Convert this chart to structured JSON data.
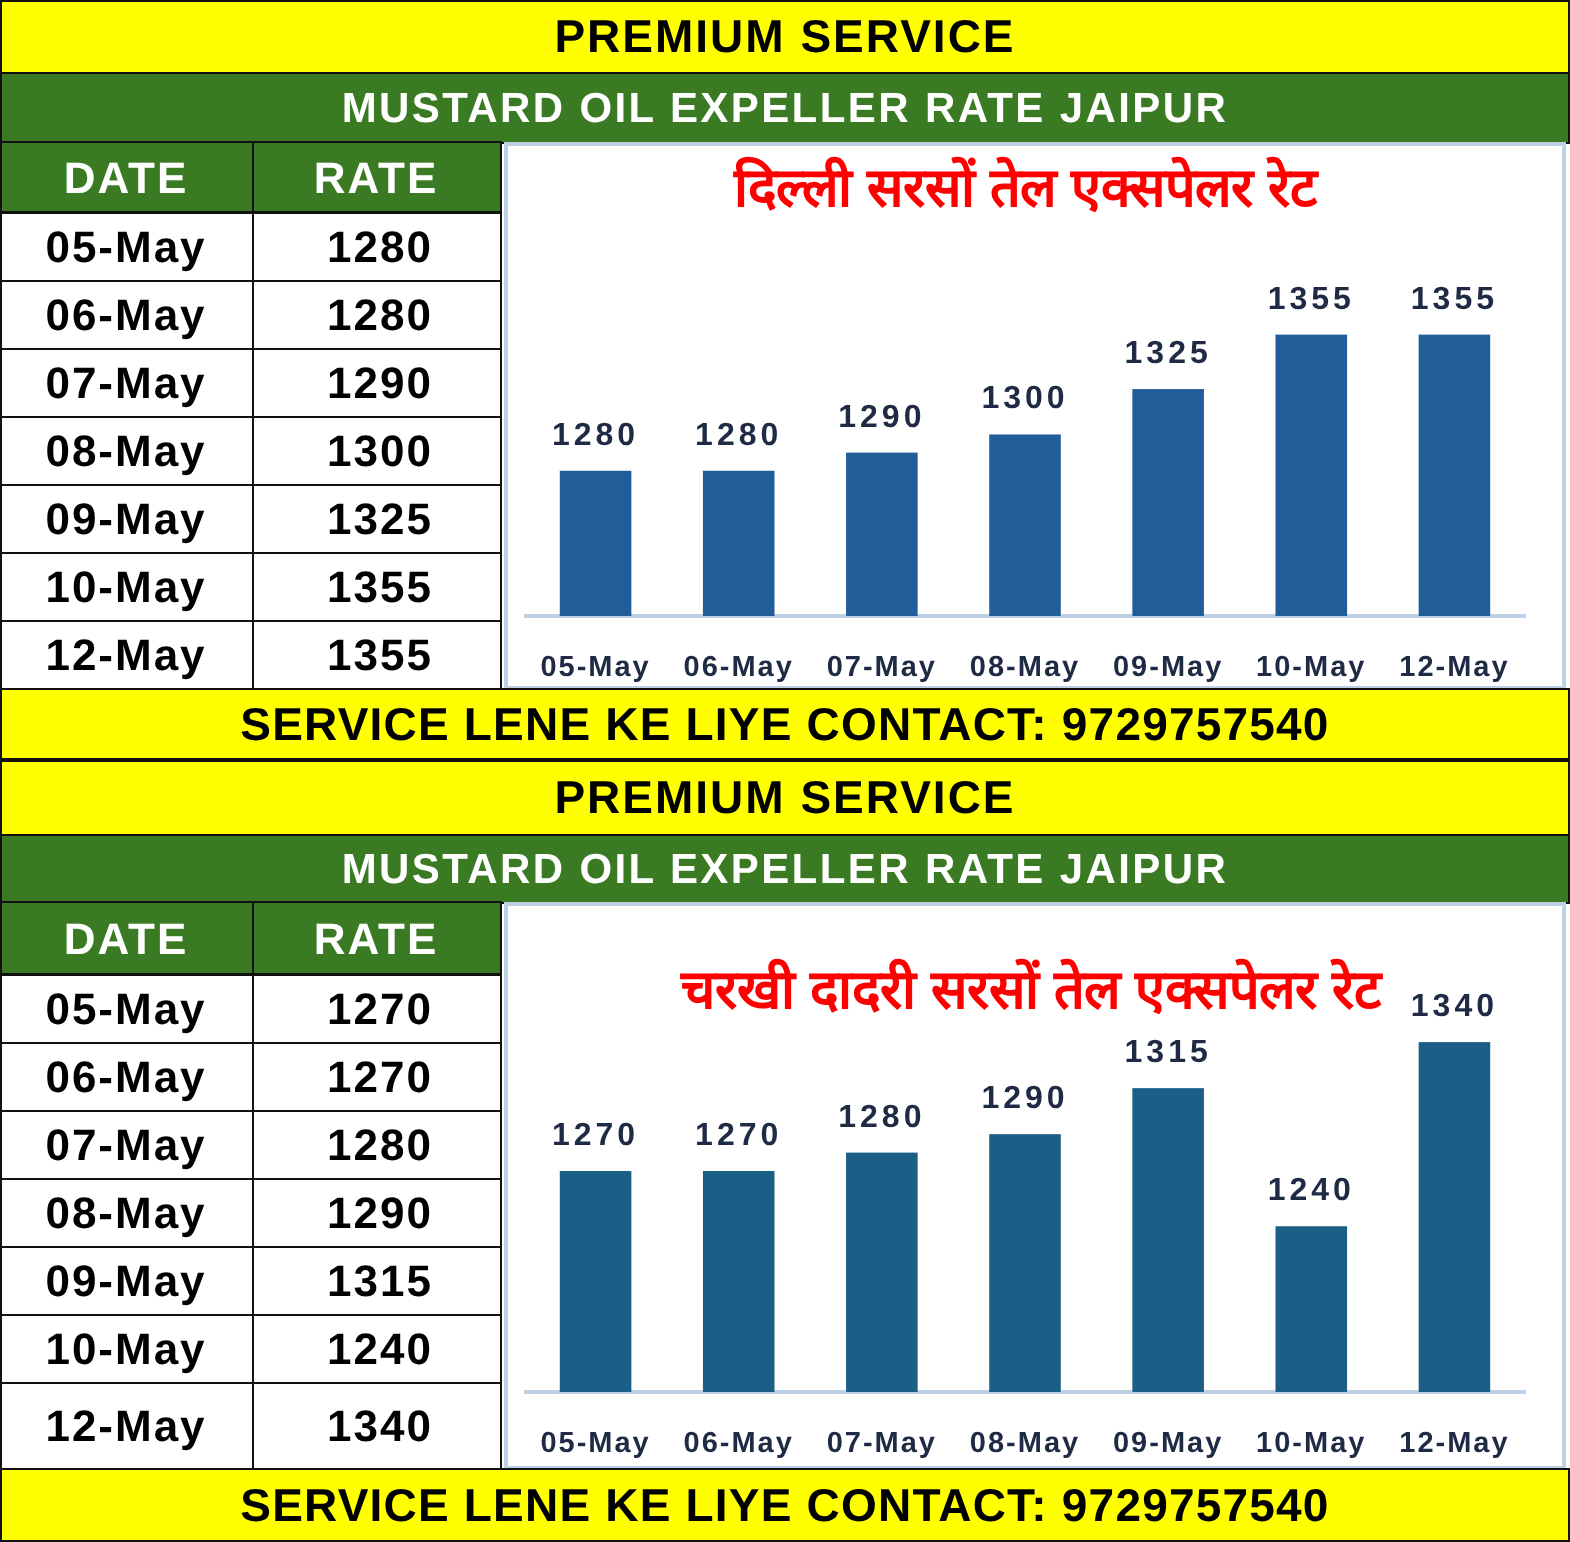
{
  "chart_data": [
    {
      "type": "bar",
      "title": "दिल्ली सरसों तेल एक्सपेलर रेट",
      "categories": [
        "05-May",
        "06-May",
        "07-May",
        "08-May",
        "09-May",
        "10-May",
        "12-May"
      ],
      "values": [
        1280,
        1280,
        1290,
        1300,
        1325,
        1355,
        1355
      ],
      "color": "#215d99",
      "data_labels": true,
      "ylim": [
        1200,
        1460
      ],
      "annotations": [
        "PREMIUM SERVICE",
        "MUSTARD OIL EXPELLER RATE JAIPUR",
        "DATE",
        "RATE",
        "1280",
        "1280",
        "1290",
        "1300",
        "1325",
        "1355",
        "1355",
        "SERVICE LENE KE LIYE CONTACT: 9729757540"
      ]
    },
    {
      "type": "bar",
      "title": "चरखी दादरी सरसों तेल एक्सपेलर रेट",
      "categories": [
        "05-May",
        "06-May",
        "07-May",
        "08-May",
        "09-May",
        "10-May",
        "12-May"
      ],
      "values": [
        1270,
        1270,
        1280,
        1290,
        1315,
        1240,
        1340
      ],
      "color": "#1b5f86",
      "data_labels": true,
      "ylim": [
        1150,
        1415
      ],
      "annotations": [
        "PREMIUM SERVICE",
        "MUSTARD OIL EXPELLER RATE JAIPUR",
        "DATE",
        "RATE",
        "1270",
        "1270",
        "1280",
        "1290",
        "1315",
        "1240",
        "1340",
        "SERVICE LENE KE LIYE CONTACT: 9729757540"
      ]
    }
  ]
}
